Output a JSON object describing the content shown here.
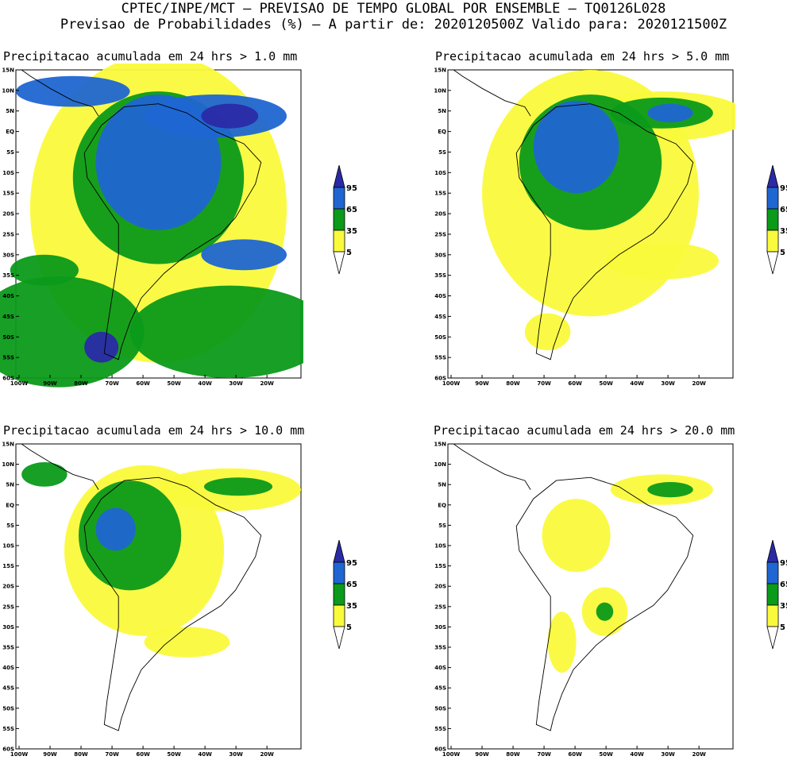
{
  "header": {
    "line1": "CPTEC/INPE/MCT — PREVISAO DE TEMPO GLOBAL POR ENSEMBLE — TQ0126L028",
    "line2": "Previsao de Probabilidades (%) —  A partir de: 2020120500Z  Valido para: 2020121500Z"
  },
  "panels": [
    {
      "title": "Precipitacao acumulada em 24 hrs > 1.0 mm"
    },
    {
      "title": "Precipitacao acumulada em 24 hrs > 5.0 mm"
    },
    {
      "title": "Precipitacao acumulada em 24 hrs > 10.0 mm"
    },
    {
      "title": "Precipitacao acumulada em 24 hrs > 20.0 mm"
    }
  ],
  "axes": {
    "lat_labels": [
      "15N",
      "10N",
      "5N",
      "EQ",
      "5S",
      "10S",
      "15S",
      "20S",
      "25S",
      "30S",
      "35S",
      "40S",
      "45S",
      "50S",
      "55S",
      "60S"
    ],
    "lon_labels": [
      "100W",
      "90W",
      "80W",
      "70W",
      "60W",
      "50W",
      "40W",
      "30W",
      "20W"
    ]
  },
  "legend": {
    "labels": [
      "95",
      "65",
      "35",
      "5"
    ],
    "colors": {
      "c95": "#2a2aa6",
      "c65": "#1f66d2",
      "c35": "#0b9a1a",
      "c5": "#fafa3c",
      "white": "#ffffff"
    }
  }
}
